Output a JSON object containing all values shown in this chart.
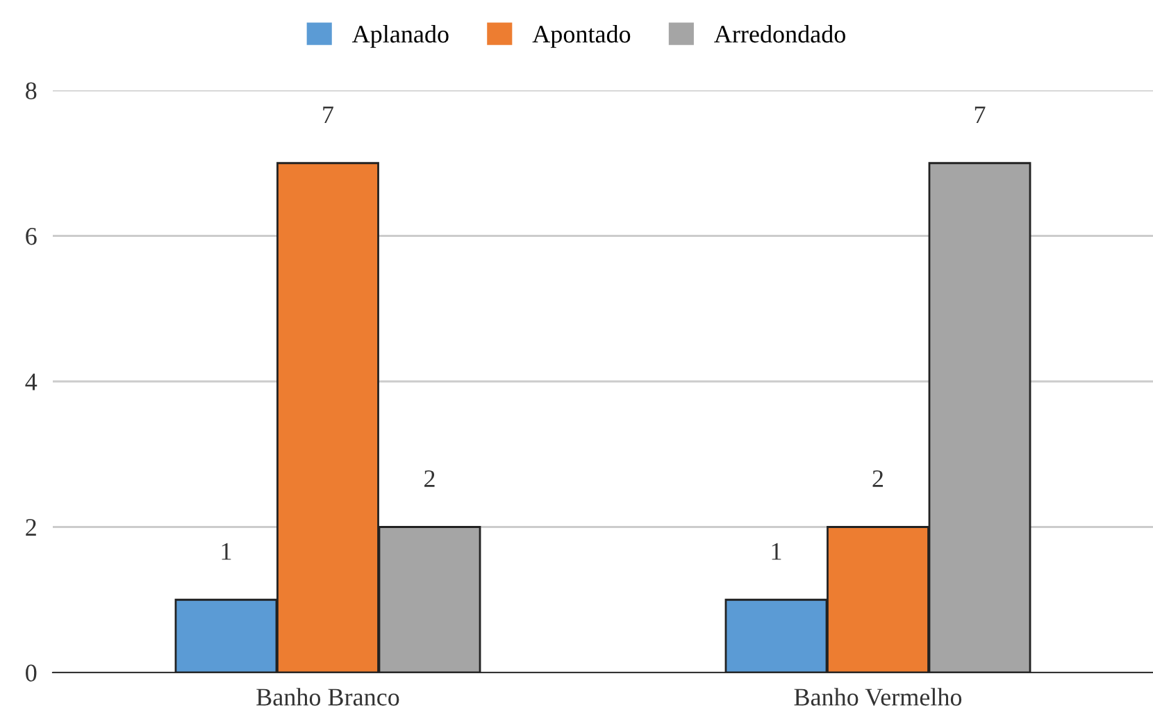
{
  "chart_data": {
    "type": "bar",
    "categories": [
      "Banho Branco",
      "Banho Vermelho"
    ],
    "series": [
      {
        "name": "Aplanado",
        "color": "#5b9bd5",
        "values": [
          1,
          1
        ]
      },
      {
        "name": "Apontado",
        "color": "#ed7d31",
        "values": [
          7,
          2
        ]
      },
      {
        "name": "Arredondado",
        "color": "#a5a5a5",
        "values": [
          2,
          7
        ]
      }
    ],
    "ylim": [
      0,
      8
    ],
    "yticks": [
      0,
      2,
      4,
      6,
      8
    ],
    "grid": "y",
    "legend": "top",
    "data_labels": true
  }
}
